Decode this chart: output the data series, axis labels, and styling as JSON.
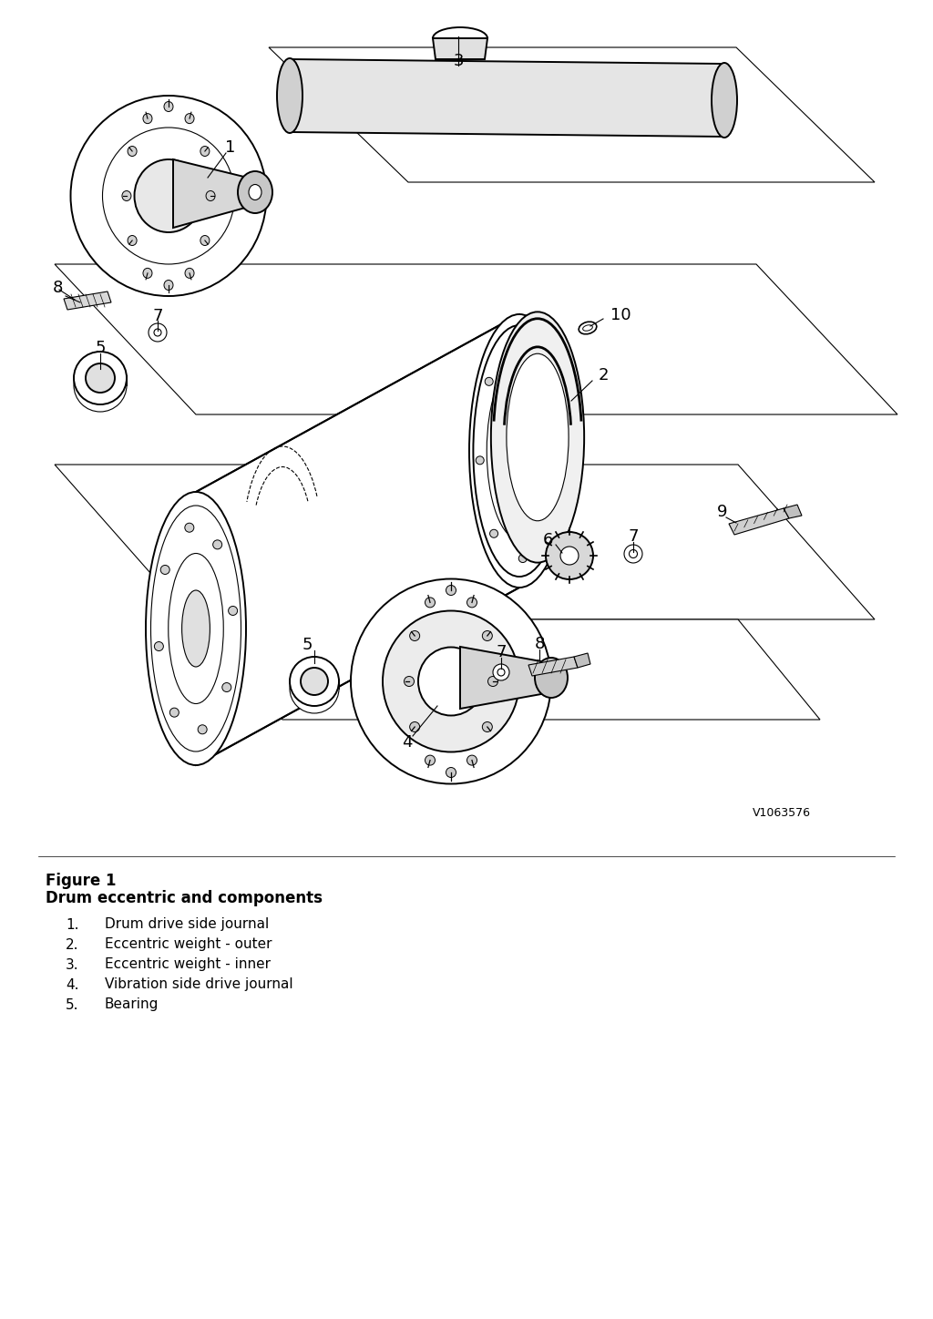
{
  "bg_color": "#ffffff",
  "line_color": "#000000",
  "part_number": "V1063576",
  "figure_label": "Figure 1",
  "subtitle": "Drum eccentric and components",
  "parts": [
    {
      "num": "1",
      "desc": "Drum drive side journal"
    },
    {
      "num": "2",
      "desc": "Eccentric weight - outer"
    },
    {
      "num": "3",
      "desc": "Eccentric weight - inner"
    },
    {
      "num": "4",
      "desc": "Vibration side drive journal"
    },
    {
      "num": "5",
      "desc": "Bearing"
    }
  ],
  "lw_main": 1.4,
  "lw_thin": 0.8,
  "lw_thick": 2.0
}
